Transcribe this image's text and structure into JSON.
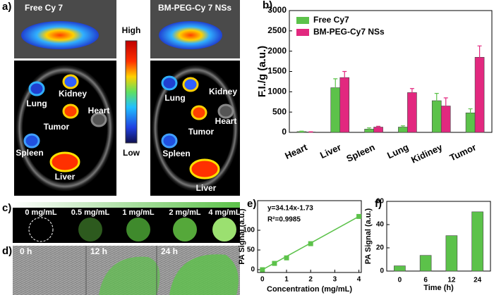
{
  "panels": {
    "a": {
      "label": "a)",
      "left_title": "Free Cy 7",
      "right_title": "BM-PEG-Cy 7 NSs",
      "scale_high": "High",
      "scale_low": "Low",
      "left_organs": [
        "Kidney",
        "Lung",
        "Tumor",
        "Heart",
        "Spleen",
        "Liver"
      ],
      "right_organs": [
        "Kidney",
        "Lung",
        "Tumor",
        "Heart",
        "Spleen",
        "Liver"
      ]
    },
    "c": {
      "label": "c)",
      "concentrations": [
        "0 mg/mL",
        "0.5 mg/mL",
        "1 mg/mL",
        "2 mg/mL",
        "4 mg/mL"
      ]
    },
    "d": {
      "label": "d)",
      "times": [
        "0 h",
        "12 h",
        "24 h"
      ]
    }
  },
  "chart_data": [
    {
      "type": "bar",
      "panel_label": "b)",
      "ylabel": "F.I./g (a.u.)",
      "categories": [
        "Heart",
        "Liver",
        "Spleen",
        "Lung",
        "Kidiney",
        "Tumor"
      ],
      "series": [
        {
          "name": "Free Cy7",
          "color": "#5cc24a",
          "values": [
            20,
            1100,
            80,
            130,
            780,
            480
          ],
          "errors": [
            10,
            220,
            30,
            30,
            180,
            100
          ]
        },
        {
          "name": "BM-PEG-Cy7 NSs",
          "color": "#e2287f",
          "values": [
            10,
            1350,
            130,
            980,
            650,
            1850
          ],
          "errors": [
            5,
            150,
            20,
            100,
            200,
            280
          ]
        }
      ],
      "ylim": [
        0,
        3000
      ],
      "yticks": [
        0,
        500,
        1000,
        1500,
        2000,
        2500,
        3000
      ],
      "legend": "upper-left"
    },
    {
      "type": "scatter",
      "panel_label": "e)",
      "equation": "y=34.14x-1.73",
      "r_squared": "R²=0.9985",
      "xlabel": "Concentration (mg/mL)",
      "ylabel": "PA Signal (a.u.)",
      "x": [
        0,
        0.5,
        1,
        2,
        4
      ],
      "values": [
        0,
        16,
        30,
        66,
        135
      ],
      "color": "#5cc24a",
      "xlim": [
        -0.2,
        4.1
      ],
      "ylim": [
        -7,
        175
      ],
      "xticks": [
        0,
        1,
        2,
        3,
        4
      ],
      "yticks": [
        0,
        50,
        100
      ]
    },
    {
      "type": "bar",
      "panel_label": "f)",
      "xlabel": "Time (h)",
      "ylabel": "PA Signal (a.u.)",
      "categories": [
        "0",
        "6",
        "12",
        "24"
      ],
      "values": [
        4.5,
        13.5,
        30.5,
        51
      ],
      "color": "#5cc24a",
      "ylim": [
        0,
        60
      ],
      "yticks": [
        0,
        20,
        40,
        60
      ]
    }
  ]
}
